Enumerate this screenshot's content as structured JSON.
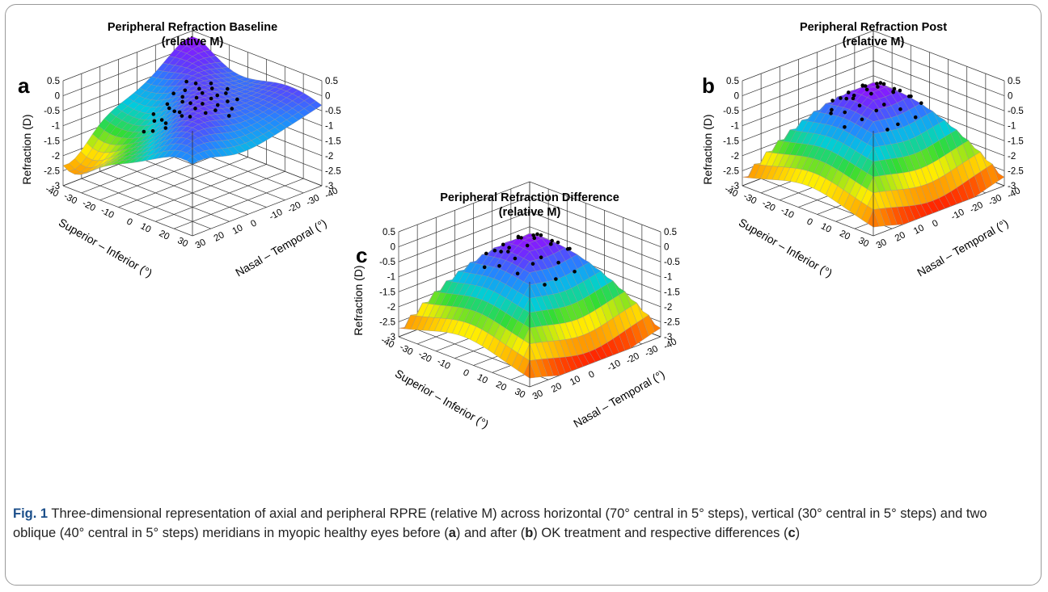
{
  "figure": {
    "panels": [
      {
        "id": "baseline",
        "letter": "a",
        "title_line1": "Peripheral Refraction Baseline",
        "title_line2": "(relative M)",
        "shape": "ridge"
      },
      {
        "id": "post",
        "letter": "b",
        "title_line1": "Peripheral Refraction Post",
        "title_line2": "(relative M)",
        "shape": "dome"
      },
      {
        "id": "difference",
        "letter": "c",
        "title_line1": "Peripheral Refraction Difference",
        "title_line2": "(relative M)",
        "shape": "dome"
      }
    ],
    "z_axis_label": "Refraction (D)",
    "z_ticks": [
      "0.5",
      "0",
      "-0.5",
      "-1",
      "-1.5",
      "-2",
      "-2.5",
      "-3"
    ],
    "si_axis_label": "Superior – Inferior (°)",
    "si_ticks": [
      "30",
      "20",
      "10",
      "0",
      "-10",
      "-20",
      "-30",
      "-40"
    ],
    "nt_axis_label": "Nasal – Temporal (°)",
    "nt_ticks": [
      "-40",
      "-30",
      "-20",
      "-10",
      "0",
      "10",
      "20",
      "30"
    ],
    "colormap": [
      "#ff0000",
      "#ff9900",
      "#ffee00",
      "#33dd33",
      "#00ccdd",
      "#2288ff",
      "#6633ff",
      "#aa00ff"
    ]
  },
  "caption": {
    "label": "Fig. 1",
    "t1": "Three-dimensional representation of axial and peripheral RPRE (relative M) across horizontal (70° central in 5° steps), vertical (30° central in 5° steps) and two oblique (40° central in 5° steps) meridians in myopic healthy eyes before (",
    "b1": "a",
    "t2": ") and after (",
    "b2": "b",
    "t3": ") OK treatment and respective differences (",
    "b3": "c",
    "t4": ")"
  }
}
